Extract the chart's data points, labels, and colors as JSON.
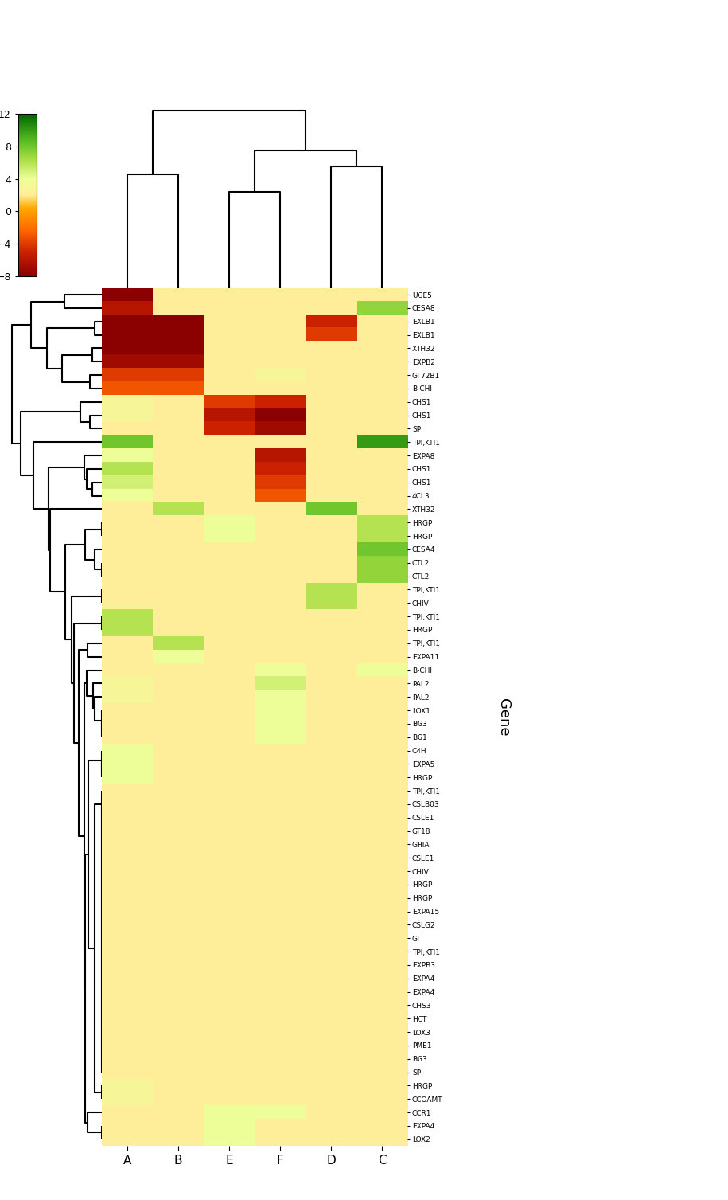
{
  "gene_labels": [
    "TPI,KTI1",
    "TPI,KTI1",
    "EXPA5",
    "EXPA8",
    "BG3",
    "SPI",
    "TPI,KTI1",
    "PME1",
    "LOX3",
    "XTH32",
    "EXPA11",
    "TPI,KTI1",
    "HCT",
    "CHIV",
    "B-CHI",
    "BG3",
    "BG1",
    "LOX1",
    "CHS3",
    "CCR1",
    "EXPA4",
    "EXPA4",
    "EXPB3",
    "TPI,KTI1",
    "EXPA4",
    "LOX2",
    "GT",
    "CSLG2",
    "EXPA15",
    "HRGP",
    "HRGP",
    "CHIV",
    "CSLE1",
    "GHIA",
    "GT18",
    "CSLE1",
    "CSLB03",
    "UGE5",
    "HRGP",
    "HRGP",
    "CTL2",
    "CESA4",
    "CTL2",
    "CESA8",
    "HRGP",
    "CHS1",
    "CHS1",
    "4CL3",
    "HRGP",
    "HRGP",
    "C4H",
    "CCOAMT",
    "PAL2",
    "PAL2",
    "CHS1",
    "SPI",
    "CHS1",
    "XTH32",
    "EXPB2",
    "EXLB1",
    "EXLB1",
    "GT72B1",
    "B-CHI",
    "TPI,KTI1"
  ],
  "col_labels": [
    "A",
    "B",
    "D",
    "E",
    "C",
    "F"
  ],
  "colorbar_ticks": [
    12,
    8,
    4,
    0,
    -4,
    -8
  ],
  "vmin": -8,
  "vmax": 12,
  "figsize": [
    9.15,
    15.07
  ],
  "ylabel_text": "Gene",
  "cmap_colors": [
    [
      0.0,
      "#8B0000"
    ],
    [
      0.15,
      "#CC2200"
    ],
    [
      0.28,
      "#FF6600"
    ],
    [
      0.42,
      "#FFAA00"
    ],
    [
      0.5,
      "#FFEE99"
    ],
    [
      0.6,
      "#EEFF99"
    ],
    [
      0.72,
      "#AADD44"
    ],
    [
      0.84,
      "#55BB22"
    ],
    [
      1.0,
      "#006600"
    ]
  ]
}
